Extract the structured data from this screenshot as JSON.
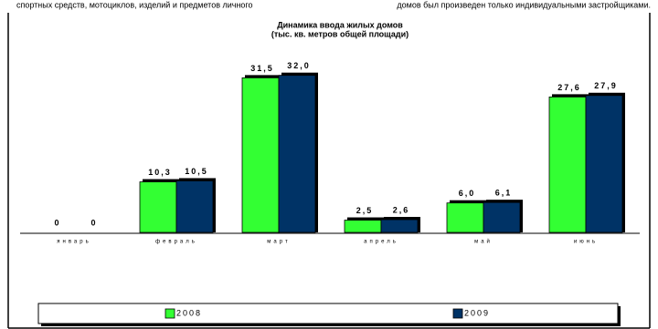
{
  "document_text": [
    "спортных средств, мотоциклов, изделий и предметов личного",
    "домов был произведен только индивидуальными застройщиками."
  ],
  "chart_data": {
    "type": "bar",
    "title": "Динамика ввода жилых домов",
    "subtitle": "(тыс. кв. метров общей площади)",
    "categories": [
      "январь",
      "февраль",
      "март",
      "апрель",
      "май",
      "июнь"
    ],
    "series": [
      {
        "name": "2008",
        "color": "#33ff33",
        "values": [
          0,
          10.3,
          31.5,
          2.5,
          6.0,
          27.6
        ],
        "value_labels": [
          "0",
          "10,3",
          "31,5",
          "2,5",
          "6,0",
          "27,6"
        ]
      },
      {
        "name": "2009",
        "color": "#003366",
        "values": [
          0,
          10.5,
          32.0,
          2.6,
          6.1,
          27.9
        ],
        "value_labels": [
          "0",
          "10,5",
          "32,0",
          "2,6",
          "6,1",
          "27,9"
        ]
      }
    ],
    "ylim": [
      0,
      39
    ],
    "grid": false,
    "legend": "bottom"
  }
}
